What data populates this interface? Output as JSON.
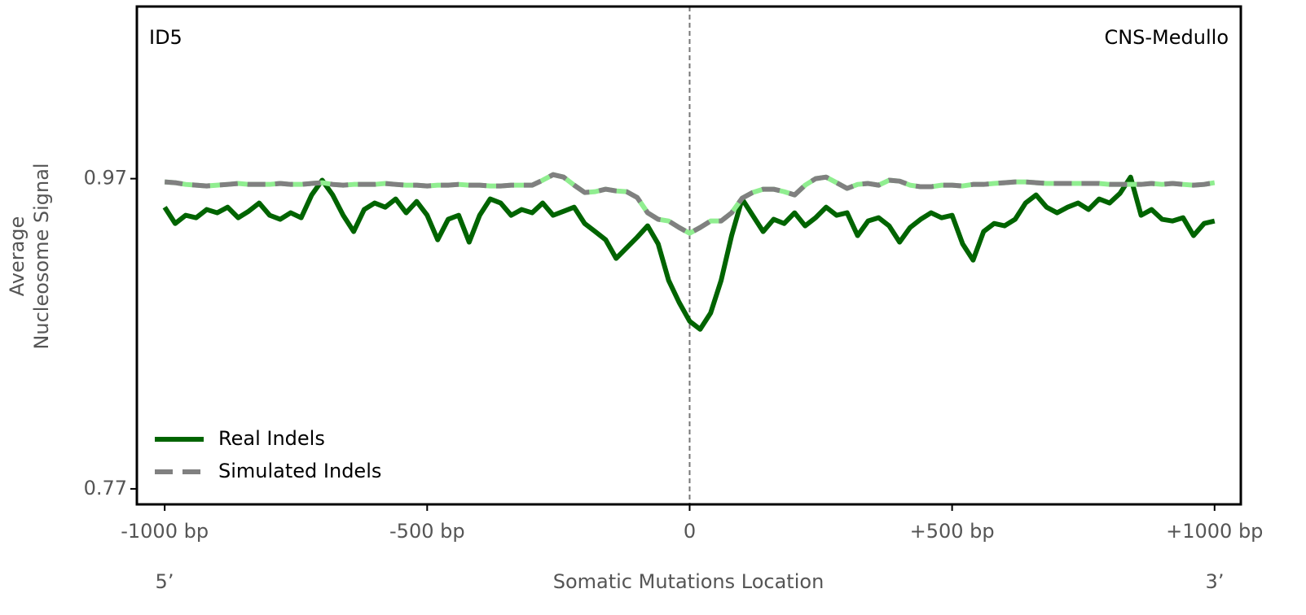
{
  "chart_data": {
    "type": "line",
    "annotations": [
      "ID5",
      "CNS-Medullo"
    ],
    "xlabel": "Somatic Mutations Location",
    "xlabel_ends": [
      "5’",
      "3’"
    ],
    "ylabel": [
      "Average",
      "Nucleosome Signal"
    ],
    "xlim": [
      -1053,
      1050
    ],
    "ylim": [
      0.76,
      1.081
    ],
    "xticks": [
      {
        "value": -1000,
        "label": "-1000 bp"
      },
      {
        "value": -500,
        "label": "-500 bp"
      },
      0,
      {
        "value": 500,
        "label": "+500 bp"
      },
      {
        "value": 1000,
        "label": "+1000 bp"
      }
    ],
    "yticks": [
      0.77,
      0.97
    ],
    "vline": 0,
    "legend": "lower left",
    "x": [
      -1000,
      -980,
      -960,
      -940,
      -920,
      -900,
      -880,
      -860,
      -840,
      -820,
      -800,
      -780,
      -760,
      -740,
      -720,
      -700,
      -680,
      -660,
      -640,
      -620,
      -600,
      -580,
      -560,
      -540,
      -520,
      -500,
      -480,
      -460,
      -440,
      -420,
      -400,
      -380,
      -360,
      -340,
      -320,
      -300,
      -280,
      -260,
      -240,
      -220,
      -200,
      -180,
      -160,
      -140,
      -120,
      -100,
      -80,
      -60,
      -40,
      -20,
      0,
      20,
      40,
      60,
      80,
      100,
      120,
      140,
      160,
      180,
      200,
      220,
      240,
      260,
      280,
      300,
      320,
      340,
      360,
      380,
      400,
      420,
      440,
      460,
      480,
      500,
      520,
      540,
      560,
      580,
      600,
      620,
      640,
      660,
      680,
      700,
      720,
      740,
      760,
      780,
      800,
      820,
      840,
      860,
      880,
      900,
      920,
      940,
      960,
      980,
      1000
    ],
    "series": [
      {
        "name": "Real Indels",
        "color": "#006400",
        "dash": false,
        "values": [
          0.9516,
          0.9411,
          0.9464,
          0.9448,
          0.9501,
          0.948,
          0.9516,
          0.9448,
          0.949,
          0.9543,
          0.9464,
          0.9438,
          0.948,
          0.9448,
          0.9595,
          0.969,
          0.9595,
          0.9464,
          0.9359,
          0.9501,
          0.9543,
          0.9516,
          0.9569,
          0.948,
          0.9553,
          0.9464,
          0.9306,
          0.9438,
          0.9464,
          0.9291,
          0.9464,
          0.9569,
          0.9543,
          0.9464,
          0.9501,
          0.948,
          0.9543,
          0.9464,
          0.949,
          0.9516,
          0.9411,
          0.9359,
          0.9306,
          0.9186,
          0.9254,
          0.9322,
          0.9396,
          0.928,
          0.9044,
          0.8902,
          0.8781,
          0.8729,
          0.8834,
          0.9044,
          0.9333,
          0.9569,
          0.9464,
          0.9359,
          0.9438,
          0.9411,
          0.948,
          0.9396,
          0.9448,
          0.9516,
          0.9464,
          0.948,
          0.9333,
          0.9427,
          0.9448,
          0.9396,
          0.9291,
          0.9385,
          0.9438,
          0.948,
          0.9448,
          0.9464,
          0.928,
          0.9175,
          0.9359,
          0.9411,
          0.9396,
          0.9438,
          0.9543,
          0.9595,
          0.9516,
          0.948,
          0.9516,
          0.9543,
          0.9501,
          0.9569,
          0.9543,
          0.9606,
          0.971,
          0.9464,
          0.9501,
          0.9438,
          0.9427,
          0.9448,
          0.9333,
          0.9411,
          0.9427
        ]
      },
      {
        "name": "Simulated Indels",
        "color": "#808080",
        "dash": true,
        "gap_color": "#90ee90",
        "values": [
          0.9679,
          0.9674,
          0.9663,
          0.9658,
          0.9653,
          0.9658,
          0.9663,
          0.9669,
          0.9663,
          0.9663,
          0.9663,
          0.9669,
          0.9663,
          0.9663,
          0.9669,
          0.9674,
          0.9663,
          0.9658,
          0.9663,
          0.9663,
          0.9663,
          0.9669,
          0.9663,
          0.9658,
          0.9658,
          0.9653,
          0.9658,
          0.9658,
          0.9663,
          0.9658,
          0.9658,
          0.9653,
          0.9653,
          0.9658,
          0.9658,
          0.9658,
          0.969,
          0.9726,
          0.971,
          0.9658,
          0.9611,
          0.9616,
          0.9632,
          0.9621,
          0.9616,
          0.9579,
          0.948,
          0.9438,
          0.9427,
          0.9385,
          0.9348,
          0.9385,
          0.9427,
          0.9427,
          0.948,
          0.9574,
          0.9611,
          0.9632,
          0.9632,
          0.9616,
          0.9595,
          0.9658,
          0.97,
          0.971,
          0.9674,
          0.9637,
          0.9663,
          0.9669,
          0.9658,
          0.969,
          0.9684,
          0.9658,
          0.9648,
          0.9648,
          0.9658,
          0.9658,
          0.9653,
          0.9663,
          0.9663,
          0.9669,
          0.9674,
          0.9679,
          0.9679,
          0.9674,
          0.9669,
          0.9669,
          0.9669,
          0.9669,
          0.9669,
          0.9669,
          0.9663,
          0.9663,
          0.9663,
          0.9663,
          0.9669,
          0.9663,
          0.9669,
          0.9663,
          0.9658,
          0.9663,
          0.9674
        ]
      }
    ]
  }
}
